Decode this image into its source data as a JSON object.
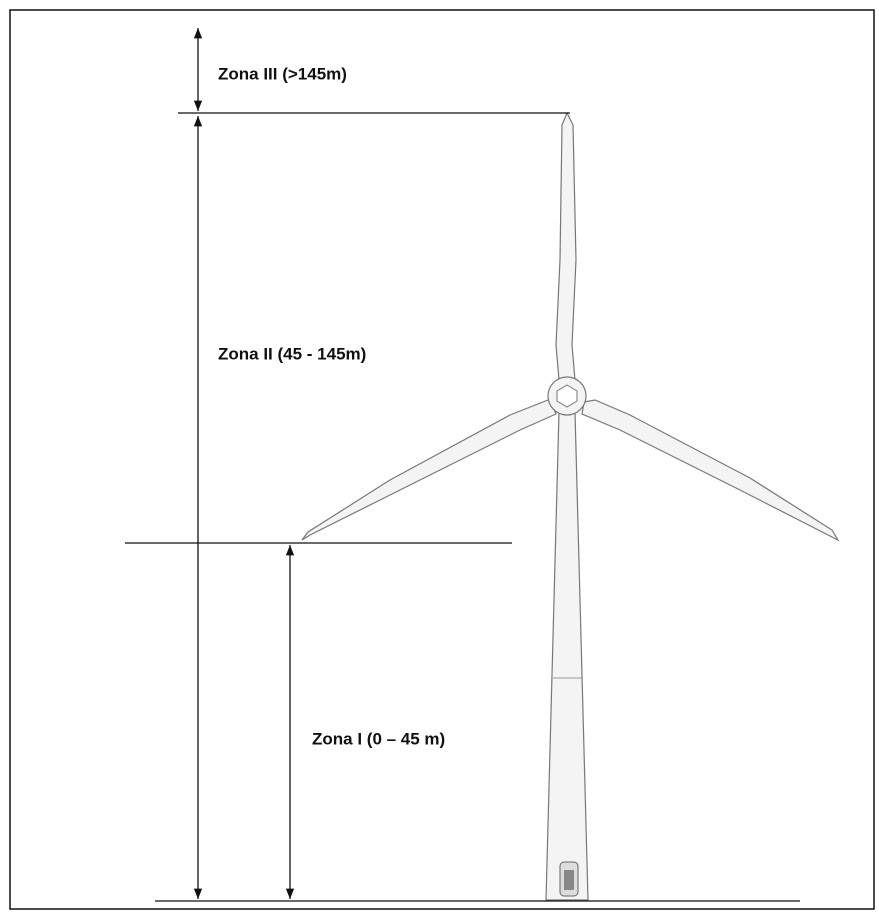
{
  "zones": [
    {
      "label": "Zona III (>145m)"
    },
    {
      "label": "Zona II (45 - 145m)"
    },
    {
      "label": "Zona I (0 – 45 m)"
    }
  ]
}
